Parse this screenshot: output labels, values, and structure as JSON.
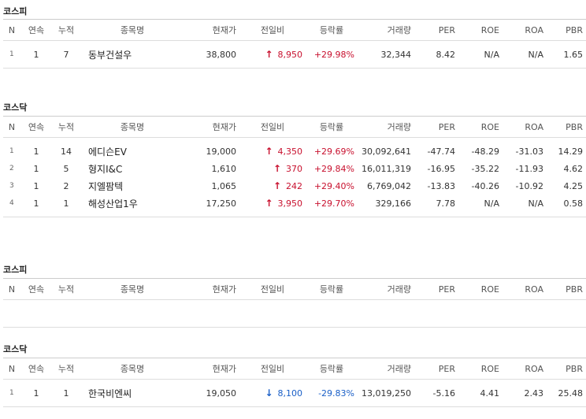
{
  "columns": [
    "N",
    "연속",
    "누적",
    "종목명",
    "현재가",
    "전일비",
    "등락률",
    "거래량",
    "PER",
    "ROE",
    "ROA",
    "PBR"
  ],
  "colors": {
    "up": "#c8102e",
    "down": "#1a5fc7"
  },
  "icons": {
    "up": "arrow-up-icon",
    "down": "arrow-down-icon"
  },
  "sections": [
    {
      "title": "코스피",
      "rows": [
        {
          "n": "1",
          "consecutive": "1",
          "cumulative": "7",
          "name": "동부건설우",
          "price": "38,800",
          "direction": "up",
          "change": "8,950",
          "rate": "+29.98%",
          "volume": "32,344",
          "per": "8.42",
          "roe": "N/A",
          "roa": "N/A",
          "pbr": "1.65"
        }
      ]
    },
    {
      "title": "코스닥",
      "rows": [
        {
          "n": "1",
          "consecutive": "1",
          "cumulative": "14",
          "name": "에디슨EV",
          "price": "19,000",
          "direction": "up",
          "change": "4,350",
          "rate": "+29.69%",
          "volume": "30,092,641",
          "per": "-47.74",
          "roe": "-48.29",
          "roa": "-31.03",
          "pbr": "14.29"
        },
        {
          "n": "2",
          "consecutive": "1",
          "cumulative": "5",
          "name": "형지I&C",
          "price": "1,610",
          "direction": "up",
          "change": "370",
          "rate": "+29.84%",
          "volume": "16,011,319",
          "per": "-16.95",
          "roe": "-35.22",
          "roa": "-11.93",
          "pbr": "4.62"
        },
        {
          "n": "3",
          "consecutive": "1",
          "cumulative": "2",
          "name": "지엘팜텍",
          "price": "1,065",
          "direction": "up",
          "change": "242",
          "rate": "+29.40%",
          "volume": "6,769,042",
          "per": "-13.83",
          "roe": "-40.26",
          "roa": "-10.92",
          "pbr": "4.25"
        },
        {
          "n": "4",
          "consecutive": "1",
          "cumulative": "1",
          "name": "해성산업1우",
          "price": "17,250",
          "direction": "up",
          "change": "3,950",
          "rate": "+29.70%",
          "volume": "329,166",
          "per": "7.78",
          "roe": "N/A",
          "roa": "N/A",
          "pbr": "0.58"
        }
      ]
    },
    {
      "title": "코스피",
      "rows": []
    },
    {
      "title": "코스닥",
      "rows": [
        {
          "n": "1",
          "consecutive": "1",
          "cumulative": "1",
          "name": "한국비엔씨",
          "price": "19,050",
          "direction": "down",
          "change": "8,100",
          "rate": "-29.83%",
          "volume": "13,019,250",
          "per": "-5.16",
          "roe": "4.41",
          "roa": "2.43",
          "pbr": "25.48"
        }
      ]
    }
  ]
}
